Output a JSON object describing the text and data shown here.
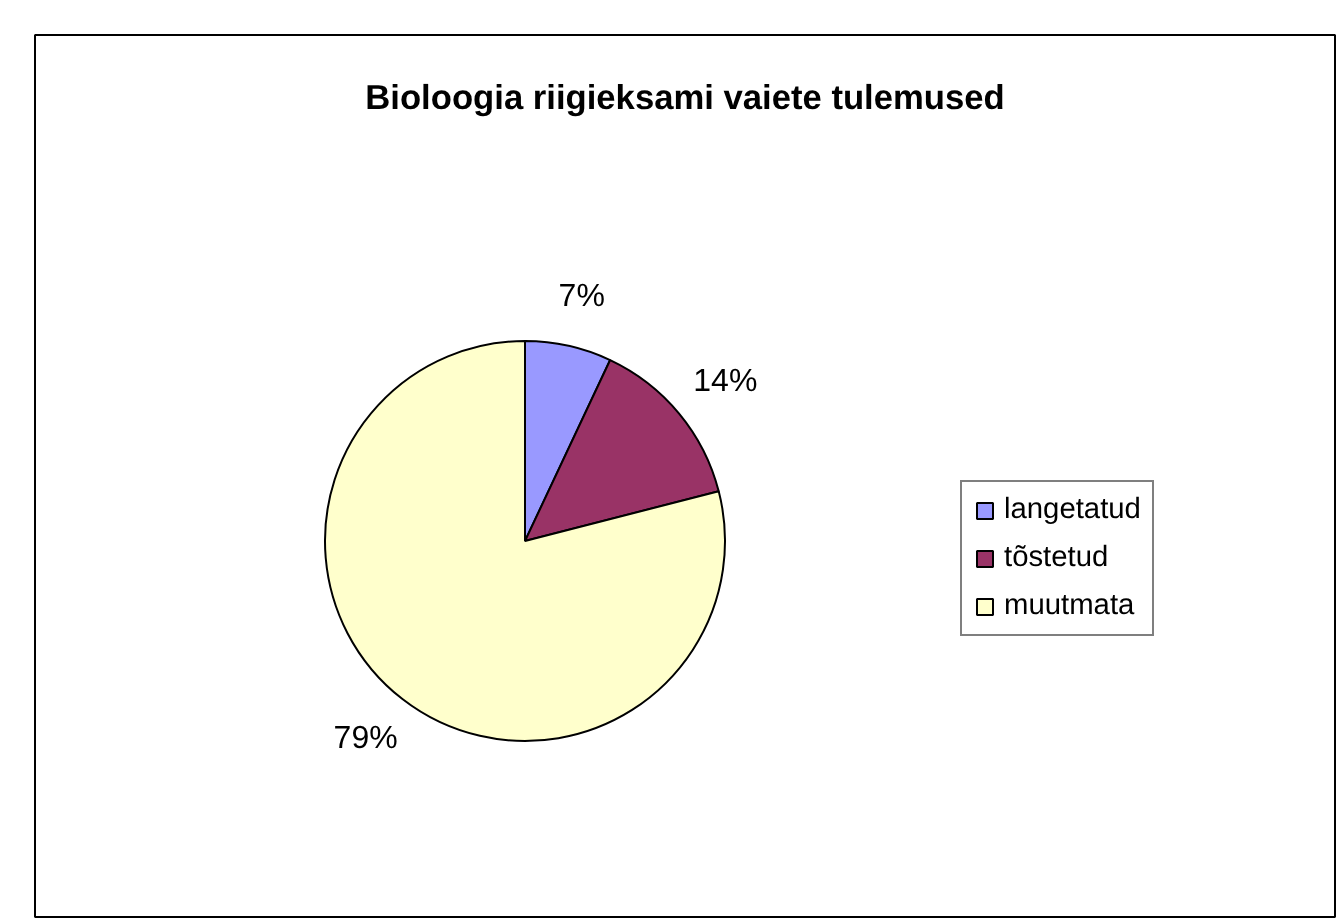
{
  "chart_data": {
    "type": "pie",
    "title": "Bioloogia riigieksami vaiete tulemused",
    "categories": [
      "langetatud",
      "tõstetud",
      "muutmata"
    ],
    "values": [
      7,
      14,
      79
    ],
    "colors": [
      "#9999ff",
      "#993366",
      "#ffffcc"
    ],
    "value_labels": [
      "7%",
      "14%",
      "79%"
    ],
    "legend": "right"
  }
}
